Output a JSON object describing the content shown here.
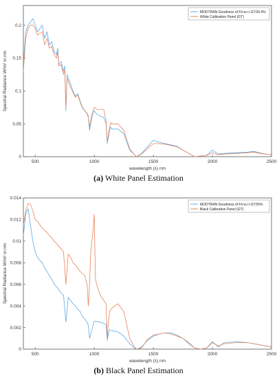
{
  "chart_data": [
    {
      "type": "line",
      "caption_letter": "(a)",
      "caption_text": "White Panel Estimation",
      "xlabel": "wavelength (λ) nm",
      "ylabel": "Spectral Radiance W/m² sr.nm",
      "xlim": [
        400,
        2500
      ],
      "ylim": [
        0,
        0.23
      ],
      "xticks": [
        500,
        1000,
        1500,
        2000,
        2500
      ],
      "yticks": [
        0,
        0.05,
        0.1,
        0.15,
        0.2
      ],
      "ytick_labels": [
        "0",
        "0.05",
        "0.1",
        "0.15",
        "0.2"
      ],
      "grid": false,
      "legend_position": "top-right",
      "series": [
        {
          "name": "MODTRAN Goodness of Fit w.r.t GT:90.4%",
          "color": "#5aa9e6",
          "x": [
            400,
            420,
            440,
            460,
            480,
            500,
            520,
            540,
            560,
            580,
            600,
            620,
            640,
            660,
            680,
            690,
            700,
            720,
            740,
            750,
            760,
            770,
            780,
            800,
            820,
            840,
            860,
            880,
            900,
            920,
            940,
            950,
            960,
            980,
            1000,
            1020,
            1050,
            1080,
            1100,
            1110,
            1120,
            1130,
            1140,
            1150,
            1200,
            1250,
            1300,
            1340,
            1360,
            1400,
            1450,
            1500,
            1550,
            1600,
            1650,
            1700,
            1750,
            1800,
            1850,
            1900,
            1950,
            2000,
            2050,
            2100,
            2200,
            2300,
            2350,
            2400,
            2450,
            2500
          ],
          "y": [
            0.14,
            0.19,
            0.2,
            0.205,
            0.21,
            0.2,
            0.19,
            0.195,
            0.2,
            0.18,
            0.19,
            0.17,
            0.175,
            0.16,
            0.155,
            0.165,
            0.14,
            0.145,
            0.13,
            0.138,
            0.07,
            0.125,
            0.12,
            0.11,
            0.1,
            0.092,
            0.096,
            0.085,
            0.075,
            0.07,
            0.065,
            0.06,
            0.04,
            0.06,
            0.07,
            0.065,
            0.062,
            0.06,
            0.05,
            0.02,
            0.03,
            0.04,
            0.045,
            0.042,
            0.042,
            0.035,
            0.01,
            0.003,
            0.0,
            0.005,
            0.015,
            0.025,
            0.022,
            0.02,
            0.018,
            0.016,
            0.01,
            0.005,
            0.0,
            0.001,
            0.002,
            0.01,
            0.004,
            0.005,
            0.006,
            0.007,
            0.008,
            0.006,
            0.004,
            0.003
          ]
        },
        {
          "name": "White Calibration Panel (GT)",
          "color": "#e8835b",
          "x": [
            400,
            420,
            440,
            460,
            480,
            500,
            520,
            540,
            560,
            580,
            600,
            620,
            640,
            660,
            680,
            690,
            700,
            720,
            740,
            750,
            760,
            770,
            780,
            800,
            820,
            840,
            860,
            880,
            900,
            920,
            940,
            950,
            960,
            980,
            1000,
            1020,
            1050,
            1080,
            1100,
            1110,
            1120,
            1130,
            1140,
            1150,
            1200,
            1250,
            1300,
            1340,
            1360,
            1400,
            1450,
            1500,
            1550,
            1600,
            1650,
            1700,
            1750,
            1800,
            1850,
            1900,
            1950,
            2000,
            2050,
            2100,
            2200,
            2300,
            2350,
            2400,
            2450,
            2500
          ],
          "y": [
            0.13,
            0.18,
            0.195,
            0.2,
            0.2,
            0.195,
            0.185,
            0.188,
            0.19,
            0.17,
            0.18,
            0.165,
            0.168,
            0.155,
            0.15,
            0.16,
            0.138,
            0.14,
            0.125,
            0.132,
            0.075,
            0.12,
            0.115,
            0.105,
            0.098,
            0.09,
            0.094,
            0.083,
            0.074,
            0.07,
            0.066,
            0.062,
            0.045,
            0.065,
            0.075,
            0.072,
            0.072,
            0.072,
            0.055,
            0.022,
            0.035,
            0.045,
            0.052,
            0.05,
            0.05,
            0.04,
            0.012,
            0.003,
            0.0,
            0.004,
            0.012,
            0.02,
            0.02,
            0.019,
            0.017,
            0.015,
            0.01,
            0.005,
            0.0,
            0.001,
            0.002,
            0.006,
            0.003,
            0.004,
            0.005,
            0.006,
            0.007,
            0.005,
            0.004,
            0.003
          ]
        }
      ]
    },
    {
      "type": "line",
      "caption_letter": "(b)",
      "caption_text": "Black Panel Estimation",
      "xlabel": "wavelength (λ) nm",
      "ylabel": "Spectral Radiance W/m² sr.nm",
      "xlim": [
        400,
        2500
      ],
      "ylim": [
        0,
        0.014
      ],
      "xticks": [
        500,
        1000,
        1500,
        2000,
        2500
      ],
      "yticks": [
        0,
        0.002,
        0.004,
        0.006,
        0.008,
        0.01,
        0.012,
        0.014
      ],
      "ytick_labels": [
        "0",
        "0.002",
        "0.004",
        "0.006",
        "0.008",
        "0.01",
        "0.012",
        "0.014"
      ],
      "grid": false,
      "legend_position": "top-right",
      "series": [
        {
          "name": "MODTRAN Goodness of Fit w.r.t GT:55%",
          "color": "#5aa9e6",
          "x": [
            400,
            420,
            440,
            460,
            480,
            500,
            520,
            540,
            560,
            580,
            600,
            620,
            640,
            660,
            680,
            700,
            720,
            740,
            760,
            780,
            800,
            820,
            840,
            860,
            880,
            900,
            920,
            940,
            950,
            960,
            980,
            1000,
            1050,
            1100,
            1110,
            1120,
            1130,
            1150,
            1200,
            1250,
            1300,
            1340,
            1360,
            1400,
            1450,
            1500,
            1550,
            1600,
            1650,
            1700,
            1750,
            1800,
            1850,
            1900,
            1950,
            2000,
            2050,
            2100,
            2200,
            2300,
            2350,
            2400,
            2450,
            2500
          ],
          "y": [
            0.0105,
            0.0125,
            0.013,
            0.0115,
            0.01,
            0.009,
            0.0085,
            0.0082,
            0.008,
            0.0075,
            0.0072,
            0.0068,
            0.0065,
            0.006,
            0.0058,
            0.0055,
            0.0052,
            0.005,
            0.0025,
            0.0048,
            0.0045,
            0.0042,
            0.004,
            0.0037,
            0.0035,
            0.003,
            0.0028,
            0.0025,
            0.0022,
            0.001,
            0.0018,
            0.0026,
            0.0025,
            0.0023,
            0.0008,
            0.0015,
            0.0018,
            0.0017,
            0.0016,
            0.0012,
            0.0005,
            0.0001,
            0.0,
            0.0002,
            0.0008,
            0.0012,
            0.0014,
            0.0015,
            0.0015,
            0.0013,
            0.001,
            0.0005,
            0.0001,
            0.0,
            0.0001,
            0.0007,
            0.0002,
            0.0006,
            0.0007,
            0.0006,
            0.0005,
            0.0004,
            0.0003,
            0.0002
          ]
        },
        {
          "name": "Black Calibration Panel (GT)",
          "color": "#e8835b",
          "x": [
            400,
            420,
            440,
            460,
            480,
            500,
            520,
            540,
            560,
            580,
            600,
            620,
            640,
            660,
            680,
            700,
            720,
            740,
            760,
            780,
            800,
            820,
            840,
            860,
            880,
            900,
            920,
            940,
            950,
            960,
            970,
            980,
            990,
            1000,
            1010,
            1020,
            1050,
            1100,
            1110,
            1120,
            1130,
            1150,
            1200,
            1250,
            1300,
            1340,
            1360,
            1400,
            1450,
            1500,
            1550,
            1600,
            1650,
            1700,
            1750,
            1800,
            1850,
            1900,
            1950,
            2000,
            2050,
            2100,
            2200,
            2300,
            2350,
            2400,
            2450,
            2500
          ],
          "y": [
            0.0115,
            0.0128,
            0.0135,
            0.0134,
            0.0128,
            0.012,
            0.0118,
            0.0115,
            0.0112,
            0.011,
            0.0108,
            0.0105,
            0.0103,
            0.01,
            0.0098,
            0.0095,
            0.0093,
            0.009,
            0.006,
            0.0088,
            0.0085,
            0.008,
            0.0078,
            0.0075,
            0.0072,
            0.007,
            0.0068,
            0.006,
            0.004,
            0.006,
            0.009,
            0.01,
            0.011,
            0.0125,
            0.0065,
            0.006,
            0.005,
            0.0042,
            0.001,
            0.0025,
            0.0035,
            0.0038,
            0.0042,
            0.0035,
            0.001,
            0.0002,
            0.0,
            0.0001,
            0.0009,
            0.0013,
            0.0014,
            0.0015,
            0.0014,
            0.0012,
            0.001,
            0.0006,
            0.0001,
            0.0,
            0.0001,
            0.0006,
            0.0003,
            0.0005,
            0.0006,
            0.0006,
            0.0005,
            0.0004,
            0.0003,
            0.0002
          ]
        }
      ]
    }
  ]
}
